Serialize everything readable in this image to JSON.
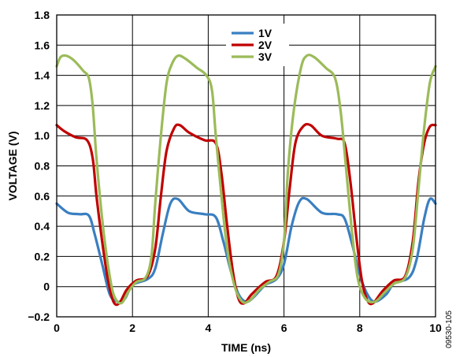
{
  "chart_data": {
    "type": "line",
    "xlabel": "TIME (ns)",
    "ylabel": "VOLTAGE (V)",
    "xlim": [
      0,
      10
    ],
    "ylim": [
      -0.2,
      1.8
    ],
    "xticks": [
      "0",
      "2",
      "4",
      "6",
      "8",
      "10"
    ],
    "yticks": [
      "1.8",
      "1.6",
      "1.4",
      "1.2",
      "1.0",
      "0.8",
      "0.6",
      "0.4",
      "0.2",
      "0",
      "−0.2"
    ],
    "grid": true,
    "legend_position": "top-center",
    "figure_id": "09530-105",
    "series": [
      {
        "name": "1V",
        "color": "#3a7fc1",
        "points": [
          [
            0,
            0.55
          ],
          [
            0.3,
            0.49
          ],
          [
            0.6,
            0.48
          ],
          [
            0.85,
            0.47
          ],
          [
            1.0,
            0.35
          ],
          [
            1.2,
            0.15
          ],
          [
            1.4,
            -0.05
          ],
          [
            1.6,
            -0.1
          ],
          [
            1.8,
            -0.08
          ],
          [
            2.0,
            0.01
          ],
          [
            2.4,
            0.05
          ],
          [
            2.6,
            0.12
          ],
          [
            2.8,
            0.35
          ],
          [
            3.0,
            0.55
          ],
          [
            3.2,
            0.58
          ],
          [
            3.5,
            0.5
          ],
          [
            3.9,
            0.48
          ],
          [
            4.2,
            0.46
          ],
          [
            4.4,
            0.3
          ],
          [
            4.6,
            0.1
          ],
          [
            4.8,
            -0.05
          ],
          [
            5.0,
            -0.1
          ],
          [
            5.2,
            -0.07
          ],
          [
            5.5,
            0.01
          ],
          [
            5.8,
            0.05
          ],
          [
            6.0,
            0.15
          ],
          [
            6.2,
            0.4
          ],
          [
            6.4,
            0.56
          ],
          [
            6.6,
            0.58
          ],
          [
            7.0,
            0.49
          ],
          [
            7.4,
            0.48
          ],
          [
            7.6,
            0.45
          ],
          [
            7.8,
            0.28
          ],
          [
            8.0,
            0.08
          ],
          [
            8.2,
            -0.05
          ],
          [
            8.4,
            -0.1
          ],
          [
            8.7,
            -0.05
          ],
          [
            8.9,
            0.02
          ],
          [
            9.3,
            0.06
          ],
          [
            9.5,
            0.18
          ],
          [
            9.7,
            0.45
          ],
          [
            9.85,
            0.58
          ],
          [
            10.0,
            0.55
          ]
        ]
      },
      {
        "name": "2V",
        "color": "#c00000",
        "points": [
          [
            0,
            1.07
          ],
          [
            0.2,
            1.03
          ],
          [
            0.5,
            0.99
          ],
          [
            0.8,
            0.97
          ],
          [
            0.95,
            0.85
          ],
          [
            1.05,
            0.6
          ],
          [
            1.2,
            0.3
          ],
          [
            1.35,
            0.05
          ],
          [
            1.5,
            -0.1
          ],
          [
            1.65,
            -0.11
          ],
          [
            1.85,
            -0.02
          ],
          [
            2.1,
            0.04
          ],
          [
            2.4,
            0.07
          ],
          [
            2.6,
            0.25
          ],
          [
            2.75,
            0.6
          ],
          [
            2.9,
            0.9
          ],
          [
            3.1,
            1.05
          ],
          [
            3.25,
            1.07
          ],
          [
            3.5,
            1.02
          ],
          [
            3.9,
            0.97
          ],
          [
            4.2,
            0.95
          ],
          [
            4.35,
            0.75
          ],
          [
            4.5,
            0.4
          ],
          [
            4.65,
            0.1
          ],
          [
            4.8,
            -0.08
          ],
          [
            4.95,
            -0.11
          ],
          [
            5.15,
            -0.05
          ],
          [
            5.5,
            0.03
          ],
          [
            5.8,
            0.07
          ],
          [
            6.0,
            0.3
          ],
          [
            6.15,
            0.65
          ],
          [
            6.3,
            0.95
          ],
          [
            6.5,
            1.06
          ],
          [
            6.7,
            1.07
          ],
          [
            7.0,
            1.0
          ],
          [
            7.4,
            0.98
          ],
          [
            7.6,
            0.95
          ],
          [
            7.75,
            0.7
          ],
          [
            7.9,
            0.35
          ],
          [
            8.05,
            0.05
          ],
          [
            8.2,
            -0.09
          ],
          [
            8.35,
            -0.11
          ],
          [
            8.6,
            -0.03
          ],
          [
            8.9,
            0.04
          ],
          [
            9.2,
            0.07
          ],
          [
            9.4,
            0.3
          ],
          [
            9.55,
            0.7
          ],
          [
            9.7,
            0.95
          ],
          [
            9.85,
            1.06
          ],
          [
            10.0,
            1.07
          ]
        ]
      },
      {
        "name": "3V",
        "color": "#9bbb59",
        "points": [
          [
            0,
            1.46
          ],
          [
            0.1,
            1.52
          ],
          [
            0.25,
            1.53
          ],
          [
            0.45,
            1.5
          ],
          [
            0.7,
            1.43
          ],
          [
            0.85,
            1.38
          ],
          [
            0.95,
            1.2
          ],
          [
            1.05,
            0.85
          ],
          [
            1.2,
            0.45
          ],
          [
            1.35,
            0.15
          ],
          [
            1.5,
            -0.05
          ],
          [
            1.7,
            -0.11
          ],
          [
            1.9,
            -0.03
          ],
          [
            2.1,
            0.03
          ],
          [
            2.35,
            0.06
          ],
          [
            2.5,
            0.2
          ],
          [
            2.6,
            0.55
          ],
          [
            2.75,
            1.0
          ],
          [
            2.9,
            1.35
          ],
          [
            3.05,
            1.48
          ],
          [
            3.2,
            1.53
          ],
          [
            3.4,
            1.51
          ],
          [
            3.7,
            1.45
          ],
          [
            3.95,
            1.4
          ],
          [
            4.1,
            1.3
          ],
          [
            4.2,
            1.0
          ],
          [
            4.35,
            0.6
          ],
          [
            4.5,
            0.25
          ],
          [
            4.7,
            0.0
          ],
          [
            4.9,
            -0.1
          ],
          [
            5.1,
            -0.09
          ],
          [
            5.35,
            -0.02
          ],
          [
            5.6,
            0.03
          ],
          [
            5.85,
            0.08
          ],
          [
            6.0,
            0.3
          ],
          [
            6.1,
            0.75
          ],
          [
            6.25,
            1.15
          ],
          [
            6.45,
            1.45
          ],
          [
            6.6,
            1.53
          ],
          [
            6.8,
            1.52
          ],
          [
            7.1,
            1.45
          ],
          [
            7.35,
            1.38
          ],
          [
            7.5,
            1.15
          ],
          [
            7.65,
            0.75
          ],
          [
            7.8,
            0.35
          ],
          [
            7.95,
            0.05
          ],
          [
            8.15,
            -0.08
          ],
          [
            8.4,
            -0.1
          ],
          [
            8.65,
            -0.04
          ],
          [
            8.9,
            0.02
          ],
          [
            9.2,
            0.06
          ],
          [
            9.4,
            0.25
          ],
          [
            9.55,
            0.65
          ],
          [
            9.7,
            1.05
          ],
          [
            9.85,
            1.35
          ],
          [
            10.0,
            1.46
          ]
        ]
      }
    ]
  }
}
